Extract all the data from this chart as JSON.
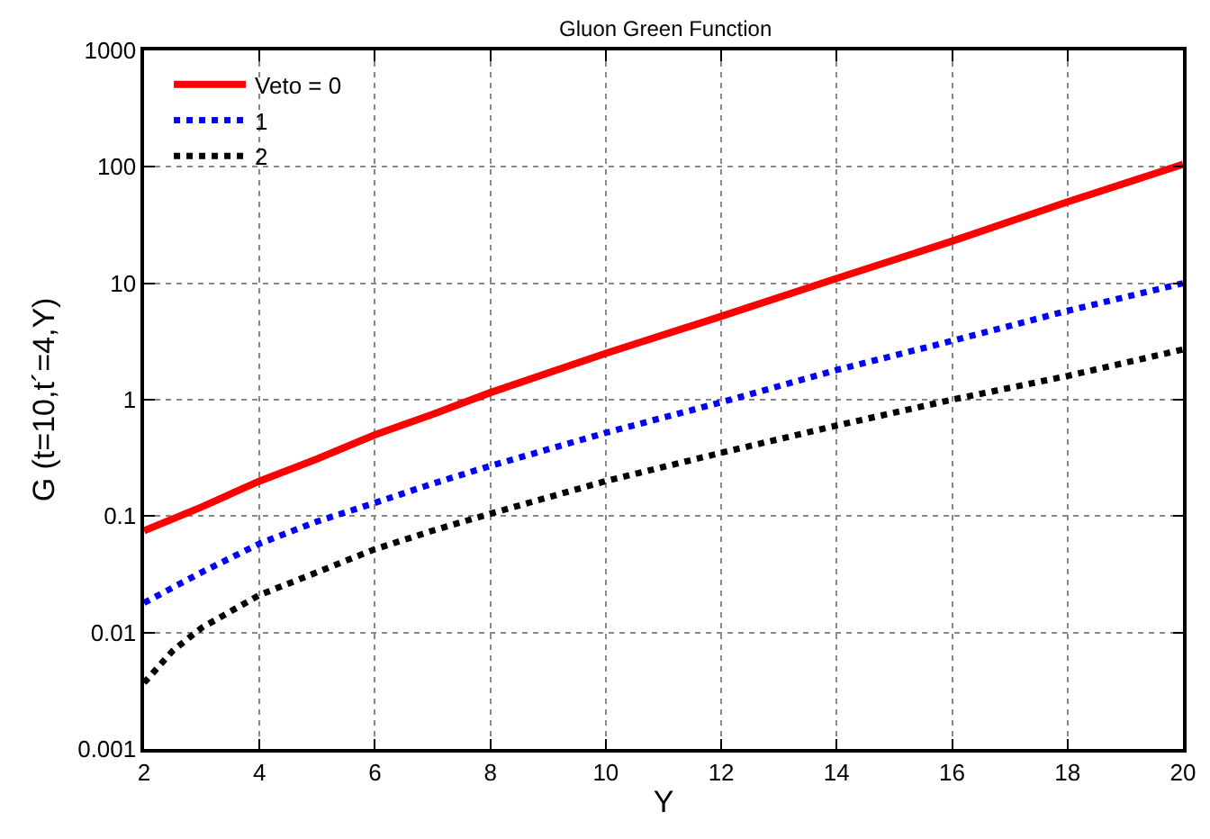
{
  "chart_data": {
    "type": "line",
    "title": "Gluon Green Function",
    "xlabel": "Y",
    "ylabel": "G (t=10,t´=4,Y)",
    "log": "y",
    "grid": true,
    "legend": "top left",
    "marker": "none",
    "xlim": [
      2,
      20
    ],
    "xticks": [
      2,
      4,
      6,
      8,
      10,
      12,
      14,
      16,
      18,
      20
    ],
    "ylim": [
      0.001,
      1000
    ],
    "yticks": [
      0.001,
      0.01,
      0.1,
      1,
      10,
      100,
      1000
    ],
    "series": [
      {
        "name": "Veto = 0",
        "color": "#ff0000",
        "line_style": "solid",
        "x": [
          2,
          3,
          4,
          5,
          6,
          7,
          8,
          10,
          12,
          14,
          16,
          18,
          20
        ],
        "values": [
          0.075,
          0.12,
          0.2,
          0.31,
          0.5,
          0.75,
          1.15,
          2.5,
          5.2,
          11,
          23,
          50,
          105
        ]
      },
      {
        "name": "1",
        "color": "#0000ff",
        "line_style": "dotted",
        "x": [
          2,
          3,
          4,
          5,
          6,
          7,
          8,
          10,
          12,
          14,
          16,
          18,
          20
        ],
        "values": [
          0.018,
          0.033,
          0.058,
          0.09,
          0.13,
          0.19,
          0.27,
          0.52,
          0.95,
          1.8,
          3.2,
          5.8,
          10
        ]
      },
      {
        "name": "2",
        "color": "#000000",
        "line_style": "dotted",
        "x": [
          2,
          2.5,
          3,
          4,
          5,
          6,
          7,
          8,
          10,
          12,
          14,
          16,
          18,
          20
        ],
        "values": [
          0.0037,
          0.007,
          0.011,
          0.021,
          0.033,
          0.052,
          0.075,
          0.105,
          0.2,
          0.35,
          0.6,
          1.0,
          1.6,
          2.7
        ]
      }
    ]
  }
}
